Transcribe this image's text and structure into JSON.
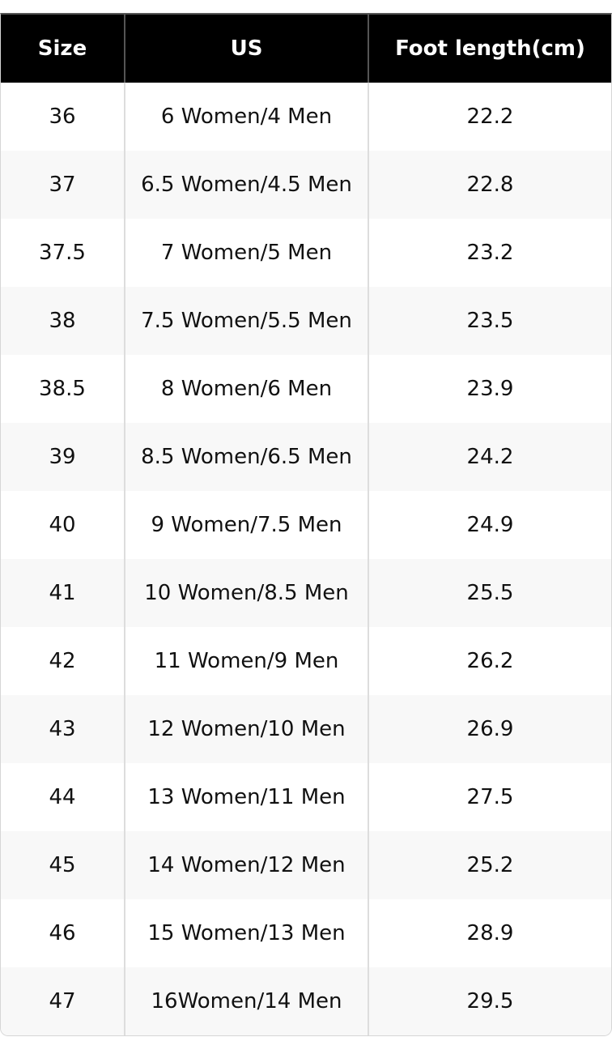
{
  "table": {
    "headers": [
      "Size",
      "US",
      "Foot length(cm)"
    ],
    "rows": [
      [
        "36",
        "6 Women/4 Men",
        "22.2"
      ],
      [
        "37",
        "6.5 Women/4.5 Men",
        "22.8"
      ],
      [
        "37.5",
        "7 Women/5 Men",
        "23.2"
      ],
      [
        "38",
        "7.5 Women/5.5 Men",
        "23.5"
      ],
      [
        "38.5",
        "8 Women/6 Men",
        "23.9"
      ],
      [
        "39",
        "8.5 Women/6.5 Men",
        "24.2"
      ],
      [
        "40",
        "9 Women/7.5 Men",
        "24.9"
      ],
      [
        "41",
        "10 Women/8.5 Men",
        "25.5"
      ],
      [
        "42",
        "11 Women/9 Men",
        "26.2"
      ],
      [
        "43",
        "12 Women/10 Men",
        "26.9"
      ],
      [
        "44",
        "13 Women/11 Men",
        "27.5"
      ],
      [
        "45",
        "14 Women/12 Men",
        "25.2"
      ],
      [
        "46",
        "15 Women/13 Men",
        "28.9"
      ],
      [
        "47",
        "16Women/14 Men",
        "29.5"
      ]
    ]
  },
  "colors": {
    "header_bg": "#000000",
    "header_text": "#ffffff",
    "alt_row_bg": "#f8f8f8"
  }
}
